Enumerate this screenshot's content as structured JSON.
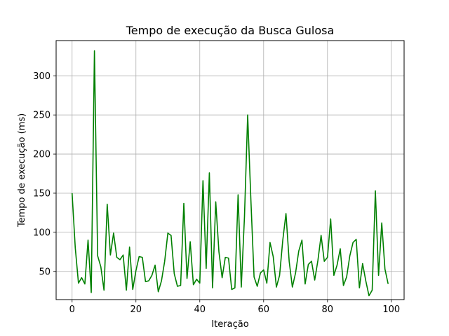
{
  "chart_data": {
    "type": "line",
    "title": "Tempo de execução da Busca Gulosa",
    "xlabel": "Iteração",
    "ylabel": "Tempo de execução (ms)",
    "xlim": [
      -5,
      104
    ],
    "ylim": [
      14,
      345
    ],
    "xticks": [
      0,
      20,
      40,
      60,
      80,
      100
    ],
    "yticks": [
      50,
      100,
      150,
      200,
      250,
      300
    ],
    "xtick_labels": [
      "0",
      "20",
      "40",
      "60",
      "80",
      "100"
    ],
    "ytick_labels": [
      "50",
      "100",
      "150",
      "200",
      "250",
      "300"
    ],
    "grid": true,
    "line_color": "#008000",
    "series": [
      {
        "x": [
          0,
          1,
          2,
          3,
          4,
          5,
          6,
          7,
          8,
          9,
          10,
          11,
          12,
          13,
          14,
          15,
          16,
          17,
          18,
          19,
          20,
          21,
          22,
          23,
          24,
          25,
          26,
          27,
          28,
          29,
          30,
          31,
          32,
          33,
          34,
          35,
          36,
          37,
          38,
          39,
          40,
          41,
          42,
          43,
          44,
          45,
          46,
          47,
          48,
          49,
          50,
          51,
          52,
          53,
          54,
          55,
          56,
          57,
          58,
          59,
          60,
          61,
          62,
          63,
          64,
          65,
          66,
          67,
          68,
          69,
          70,
          71,
          72,
          73,
          74,
          75,
          76,
          77,
          78,
          79,
          80,
          81,
          82,
          83,
          84,
          85,
          86,
          87,
          88,
          89,
          90,
          91,
          92,
          93,
          94,
          95,
          96,
          97,
          98,
          99
        ],
        "values": [
          150,
          80,
          35,
          42,
          34,
          90,
          23,
          332,
          70,
          56,
          26,
          136,
          71,
          99,
          68,
          65,
          71,
          26,
          81,
          27,
          51,
          69,
          68,
          37,
          38,
          45,
          58,
          24,
          38,
          63,
          99,
          96,
          47,
          31,
          32,
          137,
          41,
          88,
          33,
          40,
          35,
          166,
          54,
          176,
          29,
          139,
          75,
          42,
          68,
          67,
          27,
          29,
          148,
          30,
          120,
          250,
          142,
          43,
          31,
          48,
          52,
          35,
          87,
          69,
          30,
          45,
          90,
          124,
          63,
          30,
          48,
          76,
          90,
          34,
          59,
          63,
          39,
          64,
          96,
          63,
          68,
          117,
          45,
          58,
          79,
          32,
          43,
          70,
          87,
          91,
          29,
          60,
          38,
          19,
          26,
          153,
          45,
          112,
          53,
          34
        ]
      }
    ]
  }
}
